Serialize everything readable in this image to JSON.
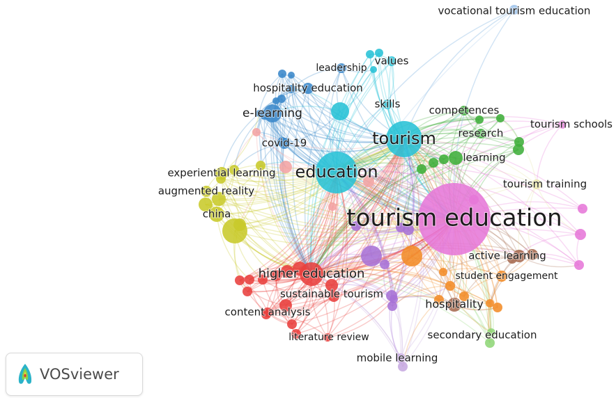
{
  "app": {
    "name": "VOSviewer"
  },
  "colors": {
    "red": "#e8403e",
    "green": "#3fae3a",
    "blue": "#3a87c9",
    "yellow": "#c8c92a",
    "purple": "#a772d6",
    "cyan": "#28c1d6",
    "orange": "#f28c28",
    "brown": "#a66a50",
    "pink": "#e678d8",
    "lightpink": "#f2a3a3",
    "lightgreen": "#8fd677",
    "lightblue": "#9fc4ea",
    "lightpurple": "#c6a8e0",
    "lightyellow": "#e7e4a0"
  },
  "network": {
    "nodes": [
      {
        "id": "tourism-education",
        "label": "tourism education",
        "cluster": "pink"
      },
      {
        "id": "education",
        "label": "education",
        "cluster": "cyan"
      },
      {
        "id": "tourism",
        "label": "tourism",
        "cluster": "cyan"
      },
      {
        "id": "higher-education",
        "label": "higher education",
        "cluster": "red"
      },
      {
        "id": "skills",
        "label": "skills",
        "cluster": "cyan"
      },
      {
        "id": "values",
        "label": "values",
        "cluster": "cyan"
      },
      {
        "id": "leadership",
        "label": "leadership",
        "cluster": "blue"
      },
      {
        "id": "hospitality-education",
        "label": "hospitality education",
        "cluster": "blue"
      },
      {
        "id": "e-learning",
        "label": "e-learning",
        "cluster": "blue"
      },
      {
        "id": "covid-19",
        "label": "covid-19",
        "cluster": "blue"
      },
      {
        "id": "experiential-learning",
        "label": "experiential learning",
        "cluster": "yellow"
      },
      {
        "id": "augmented-reality",
        "label": "augmented reality",
        "cluster": "yellow"
      },
      {
        "id": "china",
        "label": "china",
        "cluster": "yellow"
      },
      {
        "id": "competences",
        "label": "competences",
        "cluster": "green"
      },
      {
        "id": "research",
        "label": "research",
        "cluster": "green"
      },
      {
        "id": "learning",
        "label": "learning",
        "cluster": "green"
      },
      {
        "id": "tourism-schools",
        "label": "tourism schools",
        "cluster": "pink"
      },
      {
        "id": "tourism-training",
        "label": "tourism training",
        "cluster": "lightyellow"
      },
      {
        "id": "vocational-tourism-education",
        "label": "vocational tourism education",
        "cluster": "lightblue"
      },
      {
        "id": "active-learning",
        "label": "active learning",
        "cluster": "brown"
      },
      {
        "id": "student-engagement",
        "label": "student engagement",
        "cluster": "orange"
      },
      {
        "id": "hospitality",
        "label": "hospitality",
        "cluster": "brown"
      },
      {
        "id": "sustainable-tourism",
        "label": "sustainable tourism",
        "cluster": "purple"
      },
      {
        "id": "content-analysis",
        "label": "content analysis",
        "cluster": "red"
      },
      {
        "id": "literature-review",
        "label": "literature review",
        "cluster": "red"
      },
      {
        "id": "secondary-education",
        "label": "secondary education",
        "cluster": "lightgreen"
      },
      {
        "id": "mobile-learning",
        "label": "mobile learning",
        "cluster": "lightpurple"
      }
    ]
  }
}
